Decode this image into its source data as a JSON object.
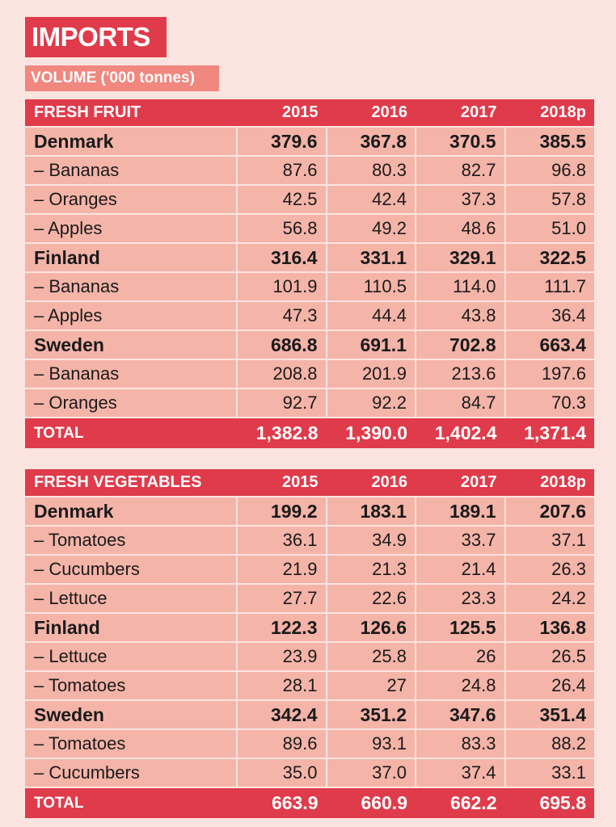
{
  "title": "IMPORTS",
  "subtitle": "VOLUME ('000 tonnes)",
  "years": [
    "2015",
    "2016",
    "2017",
    "2018p"
  ],
  "fruit": {
    "header": "FRESH FRUIT",
    "rows": [
      {
        "label": "Denmark",
        "type": "country",
        "values": [
          "379.6",
          "367.8",
          "370.5",
          "385.5"
        ]
      },
      {
        "label": "– Bananas",
        "type": "item",
        "values": [
          "87.6",
          "80.3",
          "82.7",
          "96.8"
        ]
      },
      {
        "label": "– Oranges",
        "type": "item",
        "values": [
          "42.5",
          "42.4",
          "37.3",
          "57.8"
        ]
      },
      {
        "label": "– Apples",
        "type": "item",
        "values": [
          "56.8",
          "49.2",
          "48.6",
          "51.0"
        ]
      },
      {
        "label": "Finland",
        "type": "country",
        "values": [
          "316.4",
          "331.1",
          "329.1",
          "322.5"
        ]
      },
      {
        "label": "– Bananas",
        "type": "item",
        "values": [
          "101.9",
          "110.5",
          "114.0",
          "111.7"
        ]
      },
      {
        "label": "– Apples",
        "type": "item",
        "values": [
          "47.3",
          "44.4",
          "43.8",
          "36.4"
        ]
      },
      {
        "label": "Sweden",
        "type": "country",
        "values": [
          "686.8",
          "691.1",
          "702.8",
          "663.4"
        ]
      },
      {
        "label": "– Bananas",
        "type": "item",
        "values": [
          "208.8",
          "201.9",
          "213.6",
          "197.6"
        ]
      },
      {
        "label": "– Oranges",
        "type": "item",
        "values": [
          "92.7",
          "92.2",
          "84.7",
          "70.3"
        ]
      }
    ],
    "total": {
      "label": "TOTAL",
      "values": [
        "1,382.8",
        "1,390.0",
        "1,402.4",
        "1,371.4"
      ]
    }
  },
  "vegetables": {
    "header": "FRESH VEGETABLES",
    "rows": [
      {
        "label": "Denmark",
        "type": "country",
        "values": [
          "199.2",
          "183.1",
          "189.1",
          "207.6"
        ]
      },
      {
        "label": "– Tomatoes",
        "type": "item",
        "values": [
          "36.1",
          "34.9",
          "33.7",
          "37.1"
        ]
      },
      {
        "label": "– Cucumbers",
        "type": "item",
        "values": [
          "21.9",
          "21.3",
          "21.4",
          "26.3"
        ]
      },
      {
        "label": "– Lettuce",
        "type": "item",
        "values": [
          "27.7",
          "22.6",
          "23.3",
          "24.2"
        ]
      },
      {
        "label": "Finland",
        "type": "country",
        "values": [
          "122.3",
          "126.6",
          "125.5",
          "136.8"
        ]
      },
      {
        "label": "– Lettuce",
        "type": "item",
        "values": [
          "23.9",
          "25.8",
          "26",
          "26.5"
        ]
      },
      {
        "label": "– Tomatoes",
        "type": "item",
        "values": [
          "28.1",
          "27",
          "24.8",
          "26.4"
        ]
      },
      {
        "label": "Sweden",
        "type": "country",
        "values": [
          "342.4",
          "351.2",
          "347.6",
          "351.4"
        ]
      },
      {
        "label": "– Tomatoes",
        "type": "item",
        "values": [
          "89.6",
          "93.1",
          "83.3",
          "88.2"
        ]
      },
      {
        "label": "– Cucumbers",
        "type": "item",
        "values": [
          "35.0",
          "37.0",
          "37.4",
          "33.1"
        ]
      }
    ],
    "total": {
      "label": "TOTAL",
      "values": [
        "663.9",
        "660.9",
        "662.2",
        "695.8"
      ]
    }
  }
}
